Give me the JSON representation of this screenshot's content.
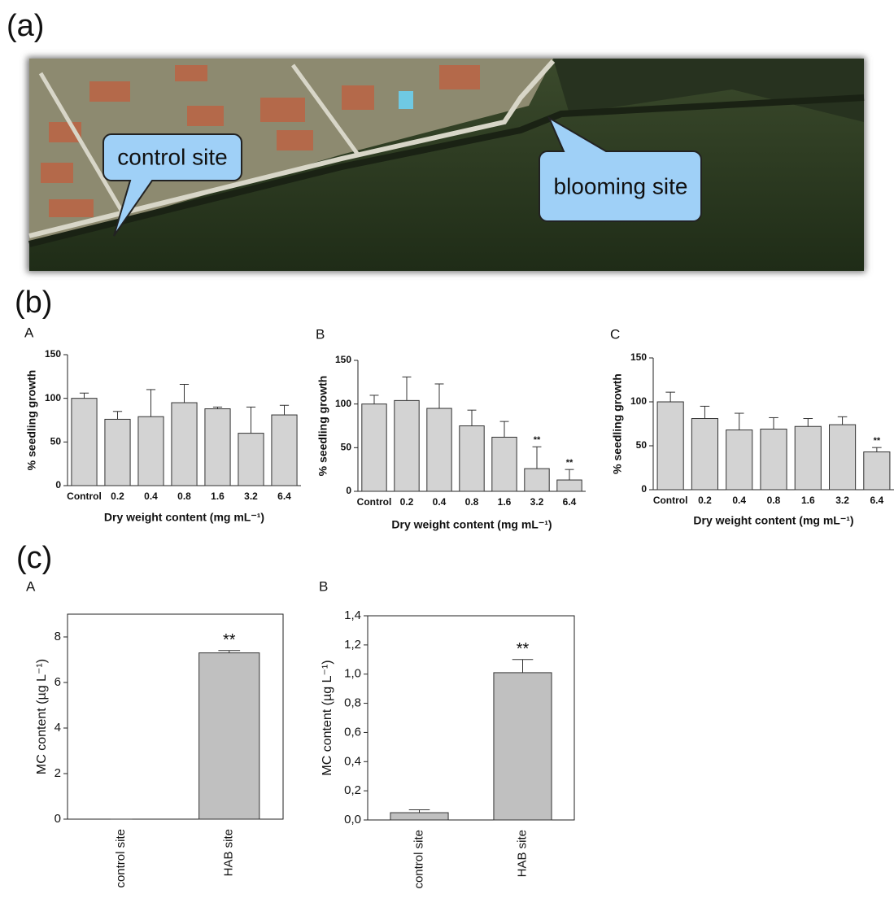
{
  "panel_labels": [
    "(a)",
    "(b)",
    "(c)"
  ],
  "map": {
    "callouts": [
      "control site",
      "blooming site"
    ]
  },
  "chart_data": [
    {
      "type": "bar",
      "title": "A",
      "ylabel": "% seedling growth",
      "xlabel": "Dry weight content (mg mL⁻¹)",
      "categories": [
        "Control",
        "0.2",
        "0.4",
        "0.8",
        "1.6",
        "3.2",
        "6.4"
      ],
      "values": [
        100,
        76,
        79,
        95,
        88,
        60,
        81
      ],
      "errors": [
        6,
        9,
        31,
        21,
        2,
        30,
        11
      ],
      "significance": [
        null,
        null,
        null,
        null,
        null,
        null,
        null
      ],
      "color": "#d3d3d3",
      "ylim": [
        0,
        150
      ],
      "yticks": [
        0,
        50,
        100,
        150
      ]
    },
    {
      "type": "bar",
      "title": "B",
      "ylabel": "% seedling growth",
      "xlabel": "Dry weight content (mg mL⁻¹)",
      "categories": [
        "Control",
        "0.2",
        "0.4",
        "0.8",
        "1.6",
        "3.2",
        "6.4"
      ],
      "values": [
        100,
        104,
        95,
        75,
        62,
        26,
        13
      ],
      "errors": [
        10,
        27,
        28,
        18,
        18,
        25,
        12
      ],
      "significance": [
        null,
        null,
        null,
        null,
        null,
        "**",
        "**"
      ],
      "color": "#d3d3d3",
      "ylim": [
        0,
        150
      ],
      "yticks": [
        0,
        50,
        100,
        150
      ]
    },
    {
      "type": "bar",
      "title": "C",
      "ylabel": "% seedling growth",
      "xlabel": "Dry weight content (mg mL⁻¹)",
      "categories": [
        "Control",
        "0.2",
        "0.4",
        "0.8",
        "1.6",
        "3.2",
        "6.4"
      ],
      "values": [
        100,
        81,
        68,
        69,
        72,
        74,
        43
      ],
      "errors": [
        11,
        14,
        19,
        13,
        9,
        9,
        5
      ],
      "significance": [
        null,
        null,
        null,
        null,
        null,
        null,
        "**"
      ],
      "color": "#d3d3d3",
      "ylim": [
        0,
        150
      ],
      "yticks": [
        0,
        50,
        100,
        150
      ]
    },
    {
      "type": "bar",
      "title": "A",
      "ylabel": "MC content (µg L⁻¹)",
      "categories": [
        "control site",
        "HAB site"
      ],
      "values": [
        0,
        7.3
      ],
      "errors": [
        0,
        0.1
      ],
      "significance": [
        null,
        "**"
      ],
      "color": "#c0c0c0",
      "ylim": [
        0,
        9
      ],
      "yticks": [
        0,
        2,
        4,
        6,
        8
      ]
    },
    {
      "type": "bar",
      "title": "B",
      "ylabel": "MC content (µg L⁻¹)",
      "categories": [
        "control site",
        "HAB site"
      ],
      "values": [
        0.05,
        1.01
      ],
      "errors": [
        0.02,
        0.09
      ],
      "significance": [
        null,
        "**"
      ],
      "color": "#c0c0c0",
      "ylim": [
        0,
        1.4
      ],
      "yticks": [
        {
          "value": 0,
          "label": "0,0"
        },
        {
          "value": 0.2,
          "label": "0,2"
        },
        {
          "value": 0.4,
          "label": "0,4"
        },
        {
          "value": 0.6,
          "label": "0,6"
        },
        {
          "value": 0.8,
          "label": "0,8"
        },
        {
          "value": 1.0,
          "label": "1,0"
        },
        {
          "value": 1.2,
          "label": "1,2"
        },
        {
          "value": 1.4,
          "label": "1,4"
        }
      ]
    }
  ]
}
